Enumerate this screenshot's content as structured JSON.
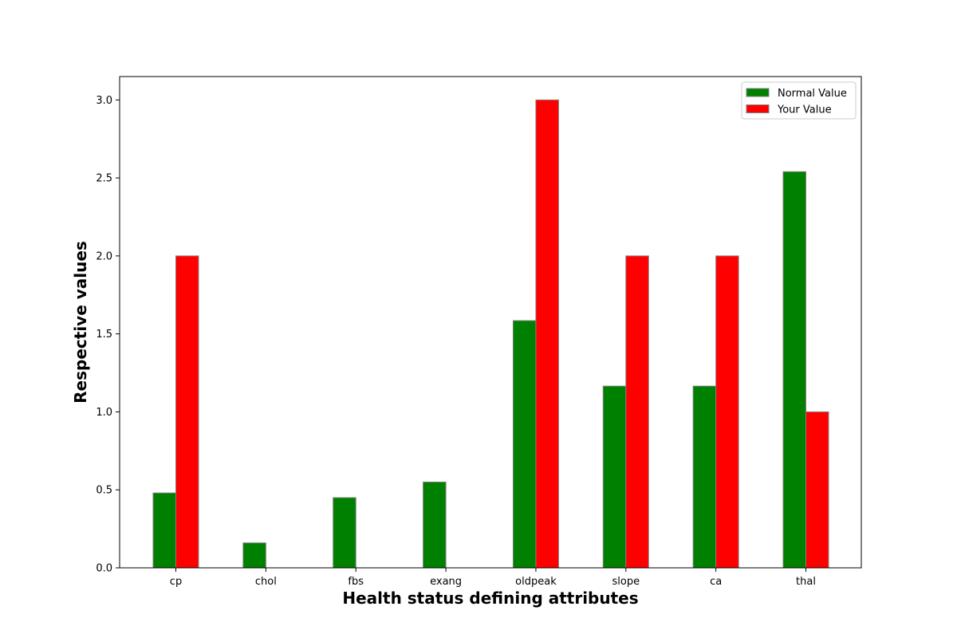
{
  "chart_data": {
    "type": "bar",
    "title": "",
    "xlabel": "Health status defining attributes",
    "ylabel": "Respective values",
    "categories": [
      "cp",
      "chol",
      "fbs",
      "exang",
      "oldpeak",
      "slope",
      "ca",
      "thal"
    ],
    "series": [
      {
        "name": "Normal Value",
        "color": "#008000",
        "values": [
          0.48,
          0.16,
          0.45,
          0.55,
          1.585,
          1.165,
          1.165,
          2.54
        ]
      },
      {
        "name": "Your Value",
        "color": "#ff0000",
        "values": [
          2.0,
          0.0,
          0.0,
          0.0,
          3.0,
          2.0,
          2.0,
          1.0
        ]
      }
    ],
    "ylim": [
      0,
      3.15
    ],
    "yticks": [
      0.0,
      0.5,
      1.0,
      1.5,
      2.0,
      2.5,
      3.0
    ],
    "ytick_labels": [
      "0.0",
      "0.5",
      "1.0",
      "1.5",
      "2.0",
      "2.5",
      "3.0"
    ],
    "grid": false,
    "legend_position": "top-right",
    "bar_edge_color": "#808080"
  }
}
